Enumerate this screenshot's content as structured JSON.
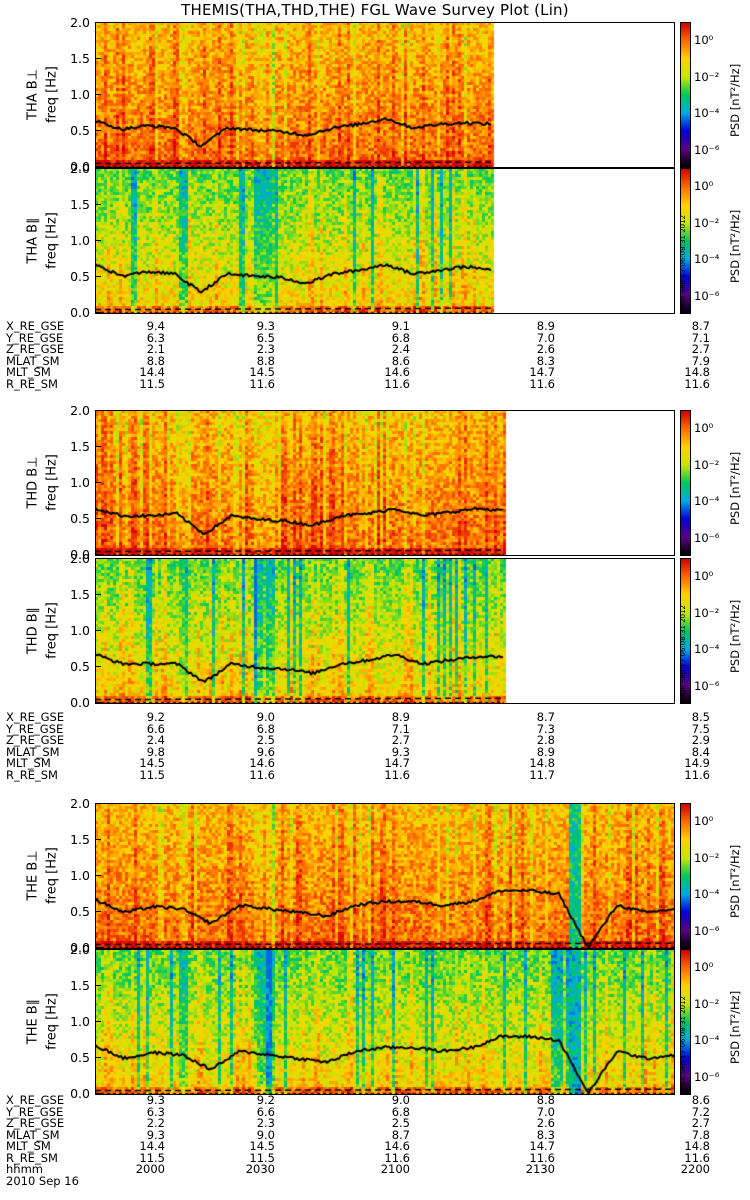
{
  "title": "THEMIS(THA,THD,THE) FGL Wave Survey Plot (Lin)",
  "colors": {
    "line": "#000000",
    "background": "#ffffff"
  },
  "colorbar": {
    "title": "PSD [nT²/Hz]",
    "ticks": [
      "10⁰",
      "10⁻²",
      "10⁻⁴",
      "10⁻⁶"
    ],
    "tick_exponents": [
      0,
      -2,
      -4,
      -6
    ]
  },
  "stamp": "Mon Sep 17 06:08:31 2012",
  "time_axis": {
    "label": "hhmm",
    "date": "2010 Sep 16",
    "ticks": [
      "2000",
      "2030",
      "2100",
      "2130",
      "2200"
    ]
  },
  "panels": [
    {
      "id": "tha_perp",
      "ylabel": "THA B⊥",
      "freq_label": "freq [Hz]",
      "yticks": [
        "2.0",
        "1.5",
        "1.0",
        "0.5",
        "0.0"
      ],
      "data_extent": 0.685,
      "colorbar": true,
      "stamp": false
    },
    {
      "id": "tha_par",
      "ylabel": "THA B∥",
      "freq_label": "freq [Hz]",
      "yticks": [
        "2.0",
        "1.5",
        "1.0",
        "0.5",
        "0.0"
      ],
      "data_extent": 0.685,
      "colorbar": true,
      "stamp": true
    },
    {
      "id": "thd_perp",
      "ylabel": "THD B⊥",
      "freq_label": "freq [Hz]",
      "yticks": [
        "2.0",
        "1.5",
        "1.0",
        "0.5",
        "0.0"
      ],
      "data_extent": 0.705,
      "colorbar": true,
      "stamp": false
    },
    {
      "id": "thd_par",
      "ylabel": "THD B∥",
      "freq_label": "freq [Hz]",
      "yticks": [
        "2.0",
        "1.5",
        "1.0",
        "0.5",
        "0.0"
      ],
      "data_extent": 0.705,
      "colorbar": true,
      "stamp": true
    },
    {
      "id": "the_perp",
      "ylabel": "THE B⊥",
      "freq_label": "freq [Hz]",
      "yticks": [
        "2.0",
        "1.5",
        "1.0",
        "0.5",
        "0.0"
      ],
      "data_extent": 1.0,
      "colorbar": true,
      "stamp": false
    },
    {
      "id": "the_par",
      "ylabel": "THE B∥",
      "freq_label": "freq [Hz]",
      "yticks": [
        "2.0",
        "1.5",
        "1.0",
        "0.5",
        "0.0"
      ],
      "data_extent": 1.0,
      "colorbar": true,
      "stamp": true
    }
  ],
  "ephemeris": [
    {
      "probe": "THA",
      "rows": [
        {
          "label": "X_RE_GSE",
          "values": [
            "9.4",
            "9.3",
            "9.1",
            "8.9",
            "8.7"
          ]
        },
        {
          "label": "Y_RE_GSE",
          "values": [
            "6.3",
            "6.5",
            "6.8",
            "7.0",
            "7.1"
          ]
        },
        {
          "label": "Z_RE_GSE",
          "values": [
            "2.1",
            "2.3",
            "2.4",
            "2.6",
            "2.7"
          ]
        },
        {
          "label": "MLAT_SM",
          "values": [
            "8.8",
            "8.8",
            "8.6",
            "8.3",
            "7.9"
          ]
        },
        {
          "label": "MLT_SM",
          "values": [
            "14.4",
            "14.5",
            "14.6",
            "14.7",
            "14.8"
          ]
        },
        {
          "label": "R_RE_SM",
          "values": [
            "11.5",
            "11.6",
            "11.6",
            "11.6",
            "11.6"
          ]
        }
      ]
    },
    {
      "probe": "THD",
      "rows": [
        {
          "label": "X_RE_GSE",
          "values": [
            "9.2",
            "9.0",
            "8.9",
            "8.7",
            "8.5"
          ]
        },
        {
          "label": "Y_RE_GSE",
          "values": [
            "6.6",
            "6.8",
            "7.1",
            "7.3",
            "7.5"
          ]
        },
        {
          "label": "Z_RE_GSE",
          "values": [
            "2.4",
            "2.5",
            "2.7",
            "2.8",
            "2.9"
          ]
        },
        {
          "label": "MLAT_SM",
          "values": [
            "9.8",
            "9.6",
            "9.3",
            "8.9",
            "8.4"
          ]
        },
        {
          "label": "MLT_SM",
          "values": [
            "14.5",
            "14.6",
            "14.7",
            "14.8",
            "14.9"
          ]
        },
        {
          "label": "R_RE_SM",
          "values": [
            "11.5",
            "11.6",
            "11.6",
            "11.7",
            "11.6"
          ]
        }
      ]
    },
    {
      "probe": "THE",
      "rows": [
        {
          "label": "X_RE_GSE",
          "values": [
            "9.3",
            "9.2",
            "9.0",
            "8.8",
            "8.6"
          ]
        },
        {
          "label": "Y_RE_GSE",
          "values": [
            "6.3",
            "6.6",
            "6.8",
            "7.0",
            "7.2"
          ]
        },
        {
          "label": "Z_RE_GSE",
          "values": [
            "2.2",
            "2.3",
            "2.5",
            "2.6",
            "2.7"
          ]
        },
        {
          "label": "MLAT_SM",
          "values": [
            "9.3",
            "9.0",
            "8.7",
            "8.3",
            "7.8"
          ]
        },
        {
          "label": "MLT_SM",
          "values": [
            "14.4",
            "14.5",
            "14.6",
            "14.7",
            "14.8"
          ]
        },
        {
          "label": "R_RE_SM",
          "values": [
            "11.5",
            "11.5",
            "11.6",
            "11.6",
            "11.6"
          ]
        }
      ]
    }
  ],
  "chart_data": {
    "type": "heatmap",
    "title": "THEMIS(THA,THD,THE) FGL Wave Survey Plot (Lin)",
    "xlabel": "hhmm",
    "x_ticks": [
      "2000",
      "2030",
      "2100",
      "2130",
      "2200"
    ],
    "ylabel": "freq [Hz]",
    "ylim": [
      0,
      2.0
    ],
    "colorbar_label": "PSD [nT^2/Hz]",
    "colorbar_range_log10": [
      -7,
      1
    ],
    "series": [
      {
        "name": "THA B⊥",
        "line_freq_hz": [
          0.65,
          0.53,
          0.58,
          0.55,
          0.3,
          0.55,
          0.52,
          0.5,
          0.45,
          0.55,
          0.6,
          0.68,
          0.55,
          0.6,
          0.62,
          0.6
        ]
      },
      {
        "name": "THA B∥",
        "line_freq_hz": [
          0.68,
          0.52,
          0.58,
          0.55,
          0.3,
          0.55,
          0.52,
          0.5,
          0.42,
          0.55,
          0.6,
          0.68,
          0.55,
          0.6,
          0.65,
          0.6
        ]
      },
      {
        "name": "THD B⊥",
        "line_freq_hz": [
          0.65,
          0.55,
          0.55,
          0.58,
          0.3,
          0.55,
          0.5,
          0.48,
          0.42,
          0.55,
          0.58,
          0.65,
          0.55,
          0.6,
          0.65,
          0.62
        ]
      },
      {
        "name": "THD B∥",
        "line_freq_hz": [
          0.68,
          0.55,
          0.55,
          0.55,
          0.3,
          0.55,
          0.5,
          0.48,
          0.42,
          0.55,
          0.6,
          0.68,
          0.55,
          0.6,
          0.65,
          0.65
        ]
      },
      {
        "name": "THE B⊥",
        "line_freq_hz": [
          0.68,
          0.5,
          0.58,
          0.55,
          0.35,
          0.6,
          0.55,
          0.5,
          0.45,
          0.6,
          0.65,
          0.65,
          0.6,
          0.65,
          0.8,
          0.8,
          0.75,
          0.02,
          0.6,
          0.5,
          0.55
        ]
      },
      {
        "name": "THE B∥",
        "line_freq_hz": [
          0.68,
          0.5,
          0.58,
          0.55,
          0.35,
          0.6,
          0.55,
          0.5,
          0.45,
          0.6,
          0.65,
          0.65,
          0.6,
          0.65,
          0.8,
          0.8,
          0.75,
          0.02,
          0.6,
          0.5,
          0.55
        ]
      }
    ]
  }
}
